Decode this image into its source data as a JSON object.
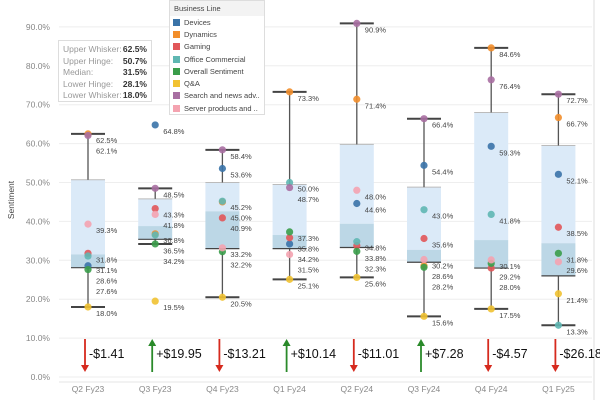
{
  "chart_data": {
    "type": "boxplot",
    "ylabel": "Sentiment",
    "ylim": [
      0,
      95
    ],
    "yticks": [
      "0.0%",
      "10.0%",
      "20.0%",
      "30.0%",
      "40.0%",
      "50.0%",
      "60.0%",
      "70.0%",
      "80.0%",
      "90.0%"
    ],
    "ytick_values": [
      0,
      10,
      20,
      30,
      40,
      50,
      60,
      70,
      80,
      90
    ],
    "grid": true,
    "categories": [
      "Q2 Fy23",
      "Q3 Fy23",
      "Q4 Fy23",
      "Q1 Fy24",
      "Q2 Fy24",
      "Q3 Fy24",
      "Q4 Fy24",
      "Q1 Fy25"
    ],
    "boxes": [
      {
        "upper_whisker": 62.5,
        "upper_hinge": 50.7,
        "median": 31.5,
        "lower_hinge": 28.1,
        "lower_whisker": 18.0
      },
      {
        "upper_whisker": 48.5,
        "upper_hinge": 45.8,
        "median": 38.8,
        "lower_hinge": 35.4,
        "lower_whisker": 34.2
      },
      {
        "upper_whisker": 58.4,
        "upper_hinge": 50.0,
        "median": 42.6,
        "lower_hinge": 33.0,
        "lower_whisker": 20.5
      },
      {
        "upper_whisker": 73.3,
        "upper_hinge": 49.5,
        "median": 36.5,
        "lower_hinge": 33.0,
        "lower_whisker": 25.1
      },
      {
        "upper_whisker": 90.9,
        "upper_hinge": 59.8,
        "median": 39.4,
        "lower_hinge": 33.3,
        "lower_whisker": 25.6
      },
      {
        "upper_whisker": 66.4,
        "upper_hinge": 48.8,
        "median": 32.7,
        "lower_hinge": 29.5,
        "lower_whisker": 15.6
      },
      {
        "upper_whisker": 84.6,
        "upper_hinge": 68.0,
        "median": 35.2,
        "lower_hinge": 28.0,
        "lower_whisker": 17.5
      },
      {
        "upper_whisker": 72.7,
        "upper_hinge": 59.5,
        "median": 34.4,
        "lower_hinge": 26.0,
        "lower_whisker": 13.3
      }
    ],
    "series": [
      {
        "name": "Devices",
        "color": "#3a73a8",
        "values": [
          28.6,
          64.8,
          53.6,
          34.2,
          44.6,
          54.4,
          59.3,
          52.1
        ]
      },
      {
        "name": "Dynamics",
        "color": "#f28e2b",
        "values": [
          62.5,
          36.8,
          45.0,
          73.3,
          71.4,
          28.6,
          84.6,
          66.7
        ]
      },
      {
        "name": "Gaming",
        "color": "#e15759",
        "values": [
          31.8,
          43.3,
          40.9,
          35.8,
          33.8,
          35.6,
          28.0,
          38.5
        ]
      },
      {
        "name": "Office Commercial",
        "color": "#5fb7b2",
        "values": [
          31.1,
          36.5,
          45.2,
          50.0,
          34.8,
          43.0,
          41.8,
          13.3
        ]
      },
      {
        "name": "Overall Sentiment",
        "color": "#3a9d4a",
        "values": [
          27.6,
          34.2,
          32.2,
          37.3,
          32.3,
          28.2,
          29.2,
          31.8
        ]
      },
      {
        "name": "Q&A",
        "color": "#f1c232",
        "values": [
          18.0,
          19.5,
          20.5,
          25.1,
          25.6,
          15.6,
          17.5,
          21.4
        ]
      },
      {
        "name": "Search and news adv..",
        "color": "#a86fa2",
        "values": [
          62.1,
          48.5,
          58.4,
          48.7,
          90.9,
          66.4,
          76.4,
          72.7
        ]
      },
      {
        "name": "Server products and ..",
        "color": "#f4a3b0",
        "values": [
          39.3,
          41.8,
          33.2,
          31.5,
          48.0,
          30.2,
          30.1,
          29.6
        ]
      }
    ],
    "annotations": [
      {
        "label": "-$1.41",
        "direction": "down"
      },
      {
        "label": "+$19.95",
        "direction": "up"
      },
      {
        "label": "-$13.21",
        "direction": "down"
      },
      {
        "label": "+$10.14",
        "direction": "up"
      },
      {
        "label": "-$11.01",
        "direction": "down"
      },
      {
        "label": "+$7.28",
        "direction": "up"
      },
      {
        "label": "-$4.57",
        "direction": "down"
      },
      {
        "label": "-$26.18",
        "direction": "down"
      }
    ],
    "legend_position": "top-center"
  },
  "legend": {
    "title": "Business Line"
  },
  "tooltip": {
    "rows": [
      {
        "label": "Upper Whisker:",
        "value": "62.5%"
      },
      {
        "label": "Upper Hinge:",
        "value": "50.7%"
      },
      {
        "label": "Median:",
        "value": "31.5%"
      },
      {
        "label": "Lower Hinge:",
        "value": "28.1%"
      },
      {
        "label": "Lower Whisker:",
        "value": "18.0%"
      }
    ]
  },
  "colors": {
    "box_upper": "#dbeaf8",
    "box_lower": "#bcd7e6",
    "up": "#2a8a2a",
    "down": "#d62a1e"
  }
}
